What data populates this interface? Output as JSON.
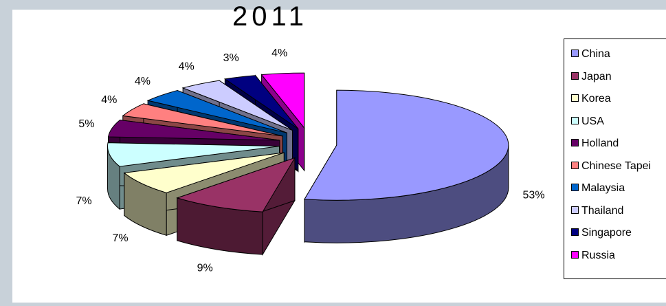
{
  "chart_data": {
    "type": "pie",
    "title": "2011",
    "categories": [
      "China",
      "Japan",
      "Korea",
      "USA",
      "Holland",
      "Chinese Tapei",
      "Malaysia",
      "Thailand",
      "Singapore",
      "Russia"
    ],
    "values": [
      53,
      9,
      7,
      7,
      5,
      4,
      4,
      4,
      3,
      4
    ],
    "labels": [
      "53%",
      "9%",
      "7%",
      "7%",
      "5%",
      "4%",
      "4%",
      "4%",
      "3%",
      "4%"
    ],
    "colors": [
      "#9999ff",
      "#993366",
      "#ffffcc",
      "#ccffff",
      "#660066",
      "#ff8080",
      "#0066cc",
      "#ccccff",
      "#000080",
      "#ff00ff"
    ],
    "legend_placement": "right",
    "exploded": true,
    "three_d": true
  }
}
